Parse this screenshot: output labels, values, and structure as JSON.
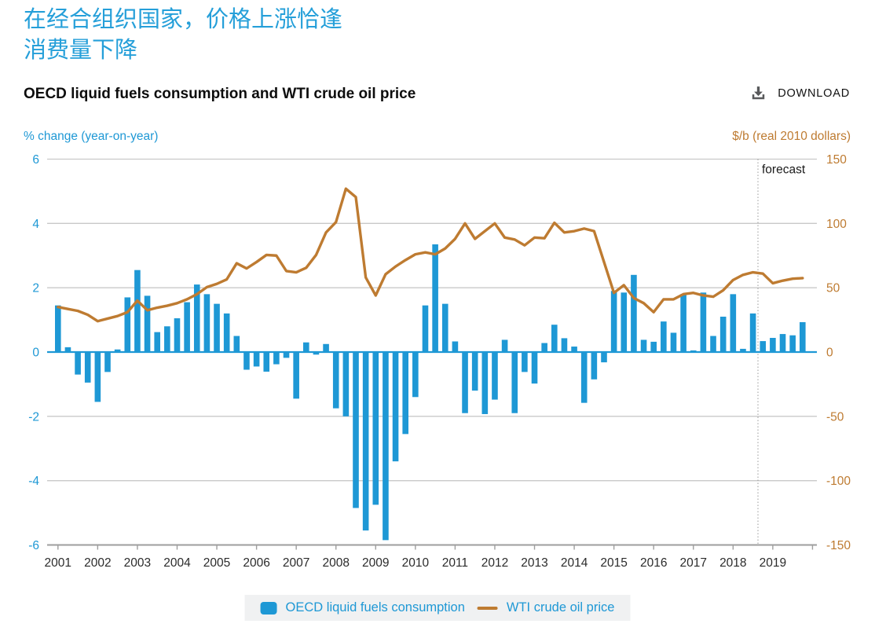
{
  "page": {
    "heading_line1": "在经合组织国家，价格上涨恰逢",
    "heading_line2": "消费量下降",
    "title": "OECD liquid fuels consumption and WTI crude oil price",
    "download_label": "DOWNLOAD"
  },
  "axes": {
    "left_caption": "% change (year-on-year)",
    "right_caption": "$/b (real 2010 dollars)",
    "left_ticks": [
      6,
      4,
      2,
      0,
      -2,
      -4,
      -6
    ],
    "right_ticks": [
      150,
      100,
      50,
      0,
      -50,
      -100,
      -150
    ],
    "years": [
      2001,
      2002,
      2003,
      2004,
      2005,
      2006,
      2007,
      2008,
      2009,
      2010,
      2011,
      2012,
      2013,
      2014,
      2015,
      2016,
      2017,
      2018,
      2019
    ]
  },
  "forecast": {
    "label": "forecast",
    "starts": "2018 Q4"
  },
  "legend": [
    {
      "label": "OECD liquid fuels consumption",
      "type": "bar",
      "color": "#1E98D5"
    },
    {
      "label": "WTI crude oil price",
      "type": "line",
      "color": "#BE7B31"
    }
  ],
  "colors": {
    "accent_blue": "#1E98D5",
    "heading_blue": "#259FD9",
    "line_orange": "#BE7B31",
    "gridline": "#c9c9c9",
    "axis_line": "#9e9e9e",
    "year_label": "#2b2b2b",
    "forecast_line": "#9a9a9a",
    "forecast_text": "#1a1a1a",
    "download_icon": "#58595b",
    "legend_bg": "#f0f1f2"
  },
  "chart_data": {
    "type": "combo",
    "title": "OECD liquid fuels consumption and WTI crude oil price",
    "x_unit": "quarter",
    "start": "2001 Q1",
    "end": "2019 Q4",
    "grid": true,
    "legend_position": "bottom",
    "forecast_start": "2018 Q4",
    "left_axis": {
      "label": "% change (year-on-year)",
      "range": [
        -6,
        6
      ]
    },
    "right_axis": {
      "label": "$/b (real 2010 dollars)",
      "range": [
        -150,
        150
      ]
    },
    "categories_years": [
      2001,
      2002,
      2003,
      2004,
      2005,
      2006,
      2007,
      2008,
      2009,
      2010,
      2011,
      2012,
      2013,
      2014,
      2015,
      2016,
      2017,
      2018,
      2019
    ],
    "series": [
      {
        "name": "OECD liquid fuels consumption",
        "type": "bar",
        "axis": "left",
        "unit": "% change year-on-year",
        "color": "#1E98D5",
        "values": [
          1.45,
          0.15,
          -0.7,
          -0.95,
          -1.55,
          -0.62,
          0.08,
          1.7,
          2.55,
          1.75,
          0.62,
          0.8,
          1.05,
          1.55,
          2.1,
          1.8,
          1.5,
          1.2,
          0.5,
          -0.55,
          -0.45,
          -0.61,
          -0.38,
          -0.18,
          -1.45,
          0.3,
          -0.08,
          0.25,
          -1.75,
          -2.0,
          -4.85,
          -5.55,
          -4.75,
          -5.85,
          -3.4,
          -2.55,
          -1.4,
          1.45,
          3.35,
          1.5,
          0.33,
          -1.9,
          -1.2,
          -1.93,
          -1.48,
          0.38,
          -1.9,
          -0.62,
          -0.98,
          0.28,
          0.85,
          0.43,
          0.17,
          -1.58,
          -0.85,
          -0.32,
          1.9,
          1.85,
          2.4,
          0.38,
          0.32,
          0.95,
          0.6,
          1.8,
          0.05,
          1.85,
          0.5,
          1.1,
          1.8,
          0.1,
          1.2,
          0.34,
          0.44,
          0.56,
          0.52,
          0.93
        ]
      },
      {
        "name": "WTI crude oil price",
        "type": "line",
        "axis": "right",
        "unit": "$/b real 2010 dollars",
        "color": "#BE7B31",
        "values": [
          35,
          33.5,
          32,
          29,
          24,
          26,
          28,
          31,
          40,
          32.5,
          34.5,
          36,
          38,
          41,
          45,
          50.5,
          53,
          56.5,
          69,
          65,
          70,
          75.5,
          75,
          63,
          62,
          65.5,
          75.5,
          93,
          101,
          127,
          120.5,
          58,
          44,
          60.5,
          66.5,
          71.5,
          76,
          77.5,
          76,
          80.5,
          88,
          100,
          88,
          94,
          100,
          89,
          87.5,
          83,
          89,
          88.5,
          100.5,
          93,
          94,
          96,
          94,
          70,
          46,
          52,
          42,
          38,
          31,
          41,
          41,
          45,
          46,
          44,
          43,
          48,
          56,
          60,
          62,
          61,
          53.5,
          55.5,
          57,
          57.5
        ]
      }
    ]
  }
}
